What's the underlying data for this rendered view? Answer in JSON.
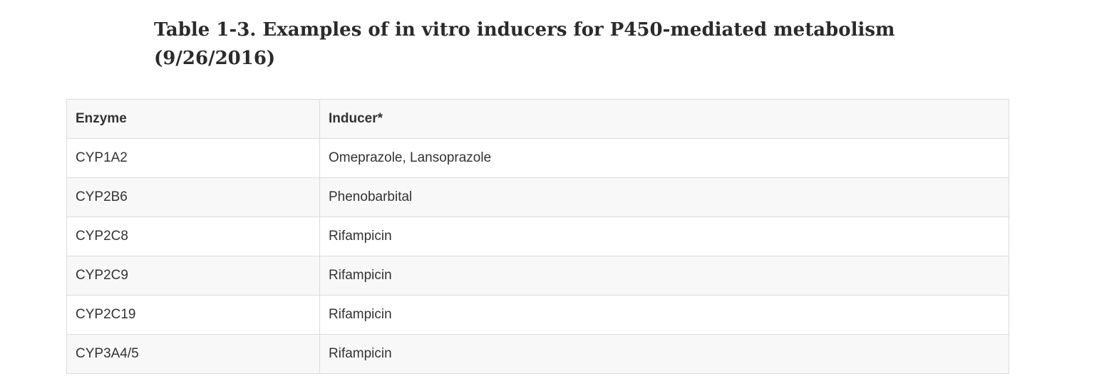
{
  "caption": "Table 1-3. Examples of in vitro inducers for P450-mediated metabolism (9/26/2016)",
  "table": {
    "headers": [
      "Enzyme",
      "Inducer*"
    ],
    "rows": [
      [
        "CYP1A2",
        "Omeprazole, Lansoprazole"
      ],
      [
        "CYP2B6",
        "Phenobarbital"
      ],
      [
        "CYP2C8",
        "Rifampicin"
      ],
      [
        "CYP2C9",
        "Rifampicin"
      ],
      [
        "CYP2C19",
        "Rifampicin"
      ],
      [
        "CYP3A4/5",
        "Rifampicin"
      ]
    ]
  }
}
